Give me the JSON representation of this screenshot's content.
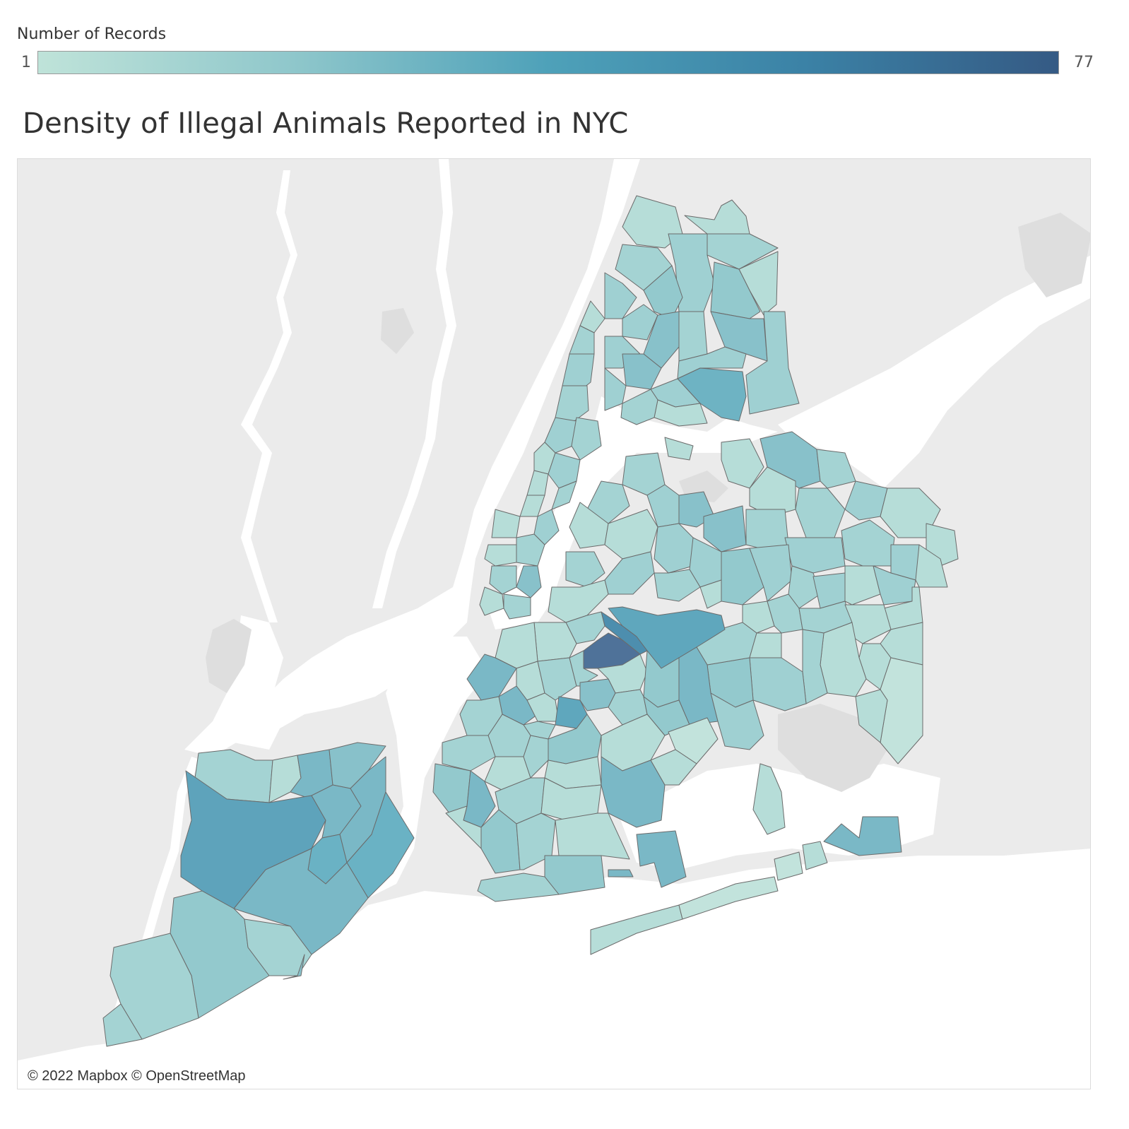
{
  "legend": {
    "title": "Number of Records",
    "min_label": "1",
    "max_label": "77",
    "min_value": 1,
    "max_value": 77,
    "color_stops": [
      "#bfe3d9",
      "#8fc7cb",
      "#4ea1b9",
      "#3b82a6",
      "#355a84"
    ]
  },
  "title": "Density of Illegal Animals Reported in NYC",
  "attribution": "© 2022 Mapbox © OpenStreetMap",
  "colors": {
    "land": "#ebebeb",
    "water": "#ffffff",
    "park": "#dedede",
    "region_stroke": "#6b6b6b"
  }
}
